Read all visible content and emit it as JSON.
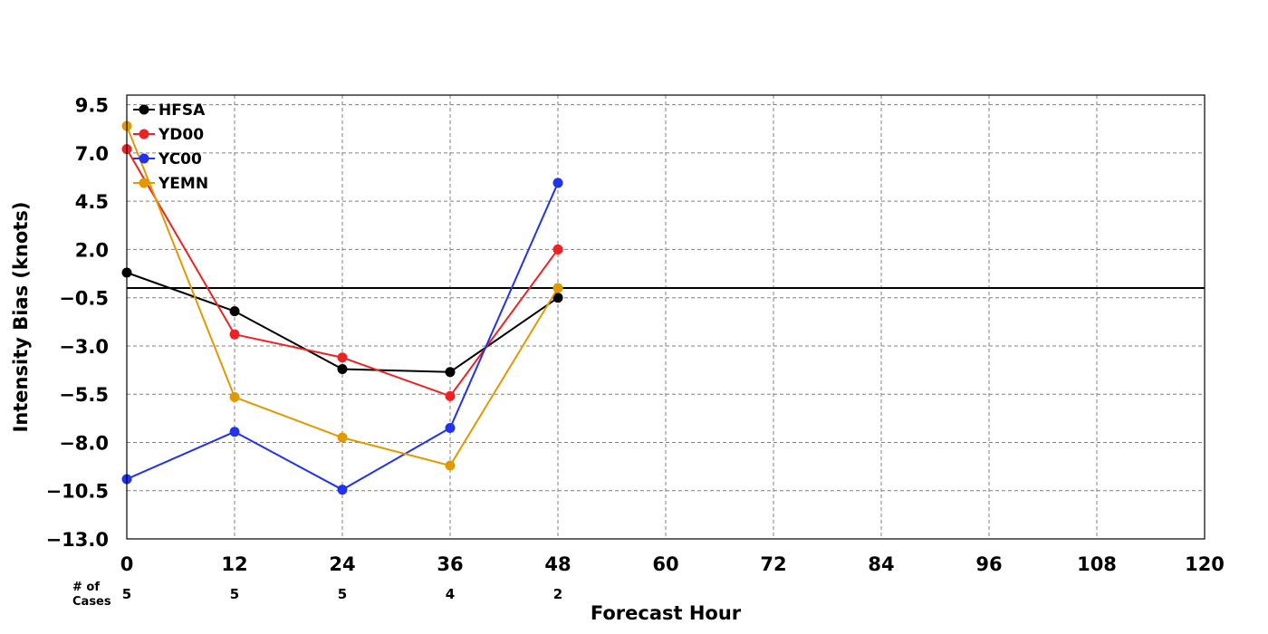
{
  "chart_data": {
    "type": "line",
    "xlabel": "Forecast Hour",
    "ylabel": "Intensity Bias (knots)",
    "xlim": [
      0,
      120
    ],
    "ylim": [
      -13.0,
      10.0
    ],
    "x_ticks": [
      0,
      12,
      24,
      36,
      48,
      60,
      72,
      84,
      96,
      108,
      120
    ],
    "y_ticks": [
      -13.0,
      -10.5,
      -8.0,
      -5.5,
      -3.0,
      -0.5,
      2.0,
      4.5,
      7.0,
      9.5
    ],
    "y_tick_labels": [
      "−13.0",
      "−10.5",
      "−8.0",
      "−5.5",
      "−3.0",
      "−0.5",
      "2.0",
      "4.5",
      "7.0",
      "9.5"
    ],
    "grid": true,
    "reference_line_y": 0.0,
    "legend_position": "top-left",
    "cases_title": "# of\nCases",
    "cases": [
      {
        "x": 0,
        "n": "5"
      },
      {
        "x": 12,
        "n": "5"
      },
      {
        "x": 24,
        "n": "5"
      },
      {
        "x": 36,
        "n": "4"
      },
      {
        "x": 48,
        "n": "2"
      }
    ],
    "series": [
      {
        "name": "HFSA",
        "color": "#000000",
        "x": [
          0,
          12,
          24,
          36,
          48
        ],
        "y": [
          0.8,
          -1.2,
          -4.2,
          -4.35,
          -0.5
        ]
      },
      {
        "name": "YD00",
        "color": "#ee2222",
        "x": [
          0,
          12,
          24,
          36,
          48
        ],
        "y": [
          7.2,
          -2.4,
          -3.6,
          -5.6,
          2.0
        ]
      },
      {
        "name": "YC00",
        "color": "#2233ee",
        "x": [
          0,
          12,
          24,
          36,
          48
        ],
        "y": [
          -9.9,
          -7.45,
          -10.45,
          -7.25,
          5.45
        ]
      },
      {
        "name": "YEMN",
        "color": "#e09a00",
        "x": [
          0,
          12,
          24,
          36,
          48
        ],
        "y": [
          8.4,
          -5.65,
          -7.75,
          -9.2,
          0.0
        ]
      }
    ]
  }
}
